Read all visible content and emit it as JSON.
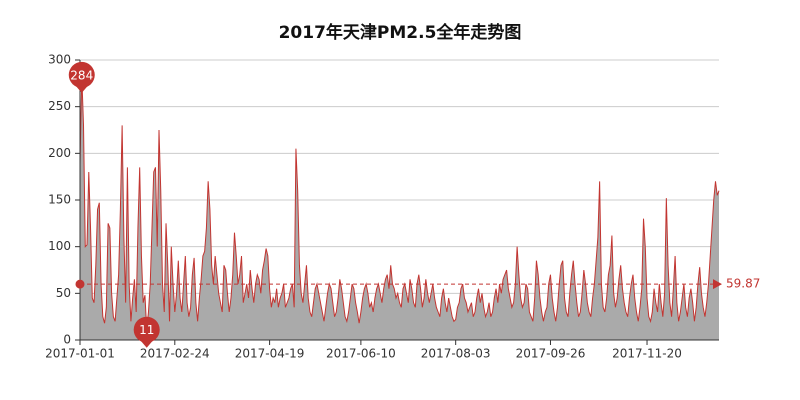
{
  "chart_data": {
    "type": "area-line",
    "title": "2017年天津PM2.5全年走势图",
    "categories": [
      "2017-01-01",
      null,
      null,
      null,
      null,
      null,
      null,
      null,
      null,
      null,
      null,
      null,
      null,
      null,
      null,
      null,
      null,
      null,
      null,
      null,
      null,
      null,
      null,
      null,
      null,
      null,
      null,
      null,
      null,
      null,
      null,
      null,
      null,
      null,
      null,
      null,
      null,
      null,
      null,
      null,
      null,
      null,
      null,
      null,
      null,
      null,
      null,
      null,
      null,
      null,
      null,
      null,
      null,
      null,
      "2017-02-24",
      null,
      null,
      null,
      null,
      null,
      null,
      null,
      null,
      null,
      null,
      null,
      null,
      null,
      null,
      null,
      null,
      null,
      null,
      null,
      null,
      null,
      null,
      null,
      null,
      null,
      null,
      null,
      null,
      null,
      null,
      null,
      null,
      null,
      null,
      null,
      null,
      null,
      null,
      null,
      null,
      null,
      null,
      null,
      null,
      null,
      null,
      null,
      null,
      null,
      null,
      null,
      null,
      null,
      "2017-04-19",
      null,
      null,
      null,
      null,
      null,
      null,
      null,
      null,
      null,
      null,
      null,
      null,
      null,
      null,
      null,
      null,
      null,
      null,
      null,
      null,
      null,
      null,
      null,
      null,
      null,
      null,
      null,
      null,
      null,
      null,
      null,
      null,
      null,
      null,
      null,
      null,
      null,
      null,
      null,
      null,
      null,
      null,
      null,
      null,
      null,
      null,
      null,
      null,
      null,
      null,
      null,
      "2017-06-10",
      null,
      null,
      null,
      null,
      null,
      null,
      null,
      null,
      null,
      null,
      null,
      null,
      null,
      null,
      null,
      null,
      null,
      null,
      null,
      null,
      null,
      null,
      null,
      null,
      null,
      null,
      null,
      null,
      null,
      null,
      null,
      null,
      null,
      null,
      null,
      null,
      null,
      null,
      null,
      null,
      null,
      null,
      null,
      null,
      null,
      null,
      null,
      null,
      null,
      null,
      null,
      null,
      null,
      "2017-08-03",
      null,
      null,
      null,
      null,
      null,
      null,
      null,
      null,
      null,
      null,
      null,
      null,
      null,
      null,
      null,
      null,
      null,
      null,
      null,
      null,
      null,
      null,
      null,
      null,
      null,
      null,
      null,
      null,
      null,
      null,
      null,
      null,
      null,
      null,
      null,
      null,
      null,
      null,
      null,
      null,
      null,
      null,
      null,
      null,
      null,
      null,
      null,
      null,
      null,
      null,
      null,
      null,
      null,
      "2017-09-26",
      null,
      null,
      null,
      null,
      null,
      null,
      null,
      null,
      null,
      null,
      null,
      null,
      null,
      null,
      null,
      null,
      null,
      null,
      null,
      null,
      null,
      null,
      null,
      null,
      null,
      null,
      null,
      null,
      null,
      null,
      null,
      null,
      null,
      null,
      null,
      null,
      null,
      null,
      null,
      null,
      null,
      null,
      null,
      null,
      null,
      null,
      null,
      null,
      null,
      null,
      null,
      null,
      null,
      null,
      "2017-11-20",
      null,
      null,
      null,
      null,
      null,
      null,
      null,
      null,
      null,
      null,
      null,
      null,
      null,
      null,
      null,
      null,
      null,
      null,
      null,
      null,
      null,
      null,
      null,
      null,
      null,
      null,
      null,
      null,
      null,
      null,
      null,
      null,
      null,
      null,
      null,
      null,
      null,
      null,
      null,
      null,
      null
    ],
    "values": [
      188,
      284,
      230,
      100,
      102,
      180,
      120,
      45,
      40,
      80,
      140,
      147,
      60,
      25,
      18,
      35,
      125,
      120,
      50,
      25,
      20,
      45,
      70,
      140,
      230,
      110,
      40,
      185,
      60,
      20,
      45,
      65,
      30,
      120,
      185,
      90,
      40,
      48,
      11,
      30,
      60,
      120,
      180,
      185,
      100,
      225,
      160,
      60,
      30,
      125,
      80,
      20,
      100,
      60,
      30,
      50,
      85,
      45,
      30,
      60,
      90,
      40,
      25,
      35,
      70,
      88,
      40,
      20,
      45,
      65,
      90,
      95,
      120,
      170,
      140,
      80,
      60,
      90,
      70,
      50,
      40,
      30,
      80,
      75,
      50,
      30,
      45,
      70,
      115,
      90,
      60,
      70,
      90,
      40,
      50,
      60,
      45,
      75,
      55,
      40,
      60,
      70,
      65,
      50,
      75,
      85,
      98,
      90,
      55,
      35,
      45,
      40,
      55,
      35,
      45,
      50,
      60,
      35,
      40,
      45,
      55,
      60,
      35,
      205,
      160,
      80,
      50,
      40,
      60,
      80,
      45,
      30,
      25,
      40,
      55,
      60,
      50,
      40,
      30,
      20,
      35,
      50,
      60,
      55,
      40,
      25,
      30,
      45,
      65,
      55,
      40,
      25,
      20,
      30,
      45,
      60,
      55,
      40,
      30,
      18,
      30,
      45,
      55,
      60,
      50,
      35,
      40,
      30,
      45,
      55,
      60,
      50,
      40,
      55,
      65,
      70,
      55,
      80,
      60,
      55,
      45,
      50,
      40,
      35,
      55,
      60,
      50,
      40,
      65,
      55,
      40,
      35,
      60,
      70,
      55,
      35,
      45,
      65,
      50,
      40,
      50,
      60,
      45,
      35,
      30,
      25,
      45,
      55,
      40,
      30,
      45,
      35,
      25,
      20,
      22,
      35,
      40,
      55,
      60,
      45,
      40,
      30,
      35,
      40,
      25,
      30,
      45,
      55,
      40,
      50,
      35,
      25,
      30,
      40,
      25,
      30,
      45,
      55,
      40,
      60,
      50,
      65,
      70,
      75,
      55,
      45,
      35,
      40,
      60,
      100,
      70,
      45,
      35,
      40,
      60,
      55,
      30,
      25,
      20,
      45,
      85,
      70,
      45,
      30,
      20,
      30,
      35,
      60,
      70,
      45,
      30,
      20,
      35,
      60,
      80,
      85,
      45,
      30,
      25,
      50,
      70,
      85,
      60,
      40,
      25,
      30,
      50,
      75,
      60,
      40,
      30,
      25,
      45,
      60,
      85,
      110,
      170,
      60,
      35,
      30,
      45,
      70,
      80,
      112,
      50,
      35,
      45,
      65,
      80,
      55,
      40,
      30,
      25,
      45,
      60,
      70,
      45,
      30,
      20,
      35,
      55,
      130,
      100,
      45,
      25,
      20,
      30,
      55,
      40,
      30,
      60,
      40,
      25,
      50,
      152,
      80,
      40,
      25,
      55,
      90,
      40,
      20,
      30,
      45,
      60,
      35,
      25,
      45,
      55,
      40,
      20,
      35,
      60,
      78,
      50,
      35,
      25,
      40,
      60,
      90,
      120,
      150,
      170,
      155,
      160
    ],
    "line_color": "#c23531",
    "area_color": "#aaaaaa",
    "mark_color": "#c23531",
    "average": 59.87,
    "ylim": [
      0,
      300
    ],
    "yticks": [
      0,
      50,
      100,
      150,
      200,
      250,
      300
    ],
    "grid": true
  }
}
